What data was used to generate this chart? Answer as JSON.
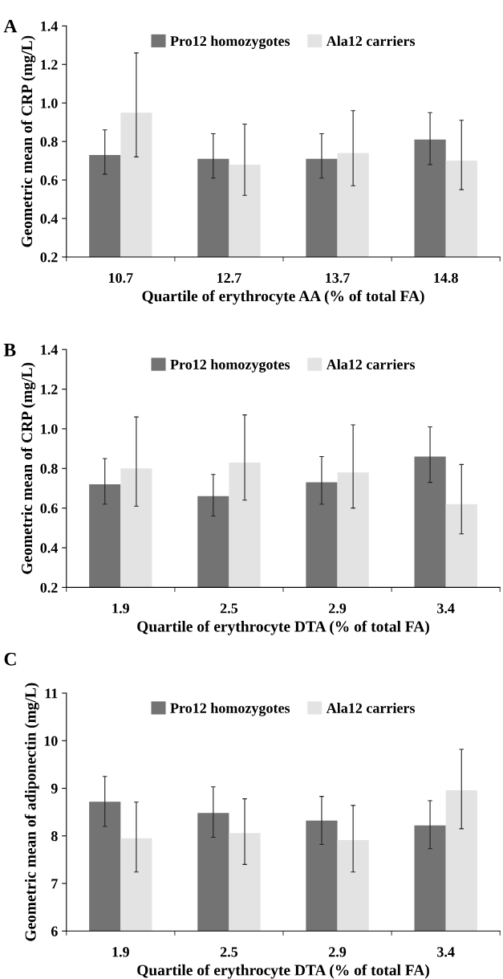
{
  "chart_data": [
    {
      "type": "bar",
      "title": "A",
      "xlabel": "Quartile of erythrocyte AA (% of total FA)",
      "ylabel": "Geometric mean of CRP (mg/L)",
      "categories": [
        "10.7",
        "12.7",
        "13.7",
        "14.8"
      ],
      "ylim": [
        0.2,
        1.4
      ],
      "yticks": [
        {
          "value": 0.2,
          "label": "0.2"
        },
        {
          "value": 0.4,
          "label": "0.4"
        },
        {
          "value": 0.6,
          "label": "0.6"
        },
        {
          "value": 0.8,
          "label": "0.8"
        },
        {
          "value": 1.0,
          "label": "1.0"
        },
        {
          "value": 1.2,
          "label": "1.2"
        },
        {
          "value": 1.4,
          "label": "1.4"
        }
      ],
      "grid": false,
      "legend": "top",
      "series": [
        {
          "name": "Pro12 homozygotes",
          "color": "#737373",
          "values": [
            0.73,
            0.71,
            0.71,
            0.81
          ],
          "errors": [
            [
              0.63,
              0.86
            ],
            [
              0.61,
              0.84
            ],
            [
              0.61,
              0.84
            ],
            [
              0.68,
              0.95
            ]
          ]
        },
        {
          "name": "Ala12 carriers",
          "color": "#e3e3e3",
          "values": [
            0.95,
            0.68,
            0.74,
            0.7
          ],
          "errors": [
            [
              0.72,
              1.26
            ],
            [
              0.52,
              0.89
            ],
            [
              0.57,
              0.96
            ],
            [
              0.55,
              0.91
            ]
          ]
        }
      ]
    },
    {
      "type": "bar",
      "title": "B",
      "xlabel": "Quartile of erythrocyte DTA (% of total FA)",
      "ylabel": "Geometric mean of CRP (mg/L)",
      "categories": [
        "1.9",
        "2.5",
        "2.9",
        "3.4"
      ],
      "ylim": [
        0.2,
        1.4
      ],
      "yticks": [
        {
          "value": 0.2,
          "label": "0.2"
        },
        {
          "value": 0.4,
          "label": "0.4"
        },
        {
          "value": 0.6,
          "label": "0.6"
        },
        {
          "value": 0.8,
          "label": "0.8"
        },
        {
          "value": 1.0,
          "label": "1.0"
        },
        {
          "value": 1.2,
          "label": "1.2"
        },
        {
          "value": 1.4,
          "label": "1.4"
        }
      ],
      "grid": false,
      "legend": "top",
      "series": [
        {
          "name": "Pro12 homozygotes",
          "color": "#737373",
          "values": [
            0.72,
            0.66,
            0.73,
            0.86
          ],
          "errors": [
            [
              0.62,
              0.85
            ],
            [
              0.56,
              0.77
            ],
            [
              0.62,
              0.86
            ],
            [
              0.73,
              1.01
            ]
          ]
        },
        {
          "name": "Ala12 carriers",
          "color": "#e3e3e3",
          "values": [
            0.8,
            0.83,
            0.78,
            0.62
          ],
          "errors": [
            [
              0.61,
              1.06
            ],
            [
              0.64,
              1.07
            ],
            [
              0.6,
              1.02
            ],
            [
              0.47,
              0.82
            ]
          ]
        }
      ]
    },
    {
      "type": "bar",
      "title": "C",
      "xlabel": "Quartile of erythrocyte DTA (% of total FA)",
      "ylabel": "Geometric mean of adiponectin (mg/L)",
      "categories": [
        "1.9",
        "2.5",
        "2.9",
        "3.4"
      ],
      "ylim": [
        6,
        11
      ],
      "yticks": [
        6,
        7,
        8,
        9,
        10,
        11
      ],
      "grid": false,
      "legend": "top",
      "series": [
        {
          "name": "Pro12 homozygotes",
          "color": "#737373",
          "values": [
            8.72,
            8.48,
            8.32,
            8.22
          ],
          "errors": [
            [
              8.2,
              9.25
            ],
            [
              7.97,
              9.03
            ],
            [
              7.82,
              8.83
            ],
            [
              7.73,
              8.74
            ]
          ]
        },
        {
          "name": "Ala12 carriers",
          "color": "#e3e3e3",
          "values": [
            7.95,
            8.06,
            7.91,
            8.96
          ],
          "errors": [
            [
              7.24,
              8.71
            ],
            [
              7.4,
              8.78
            ],
            [
              7.24,
              8.64
            ],
            [
              8.15,
              9.82
            ]
          ]
        }
      ]
    }
  ]
}
